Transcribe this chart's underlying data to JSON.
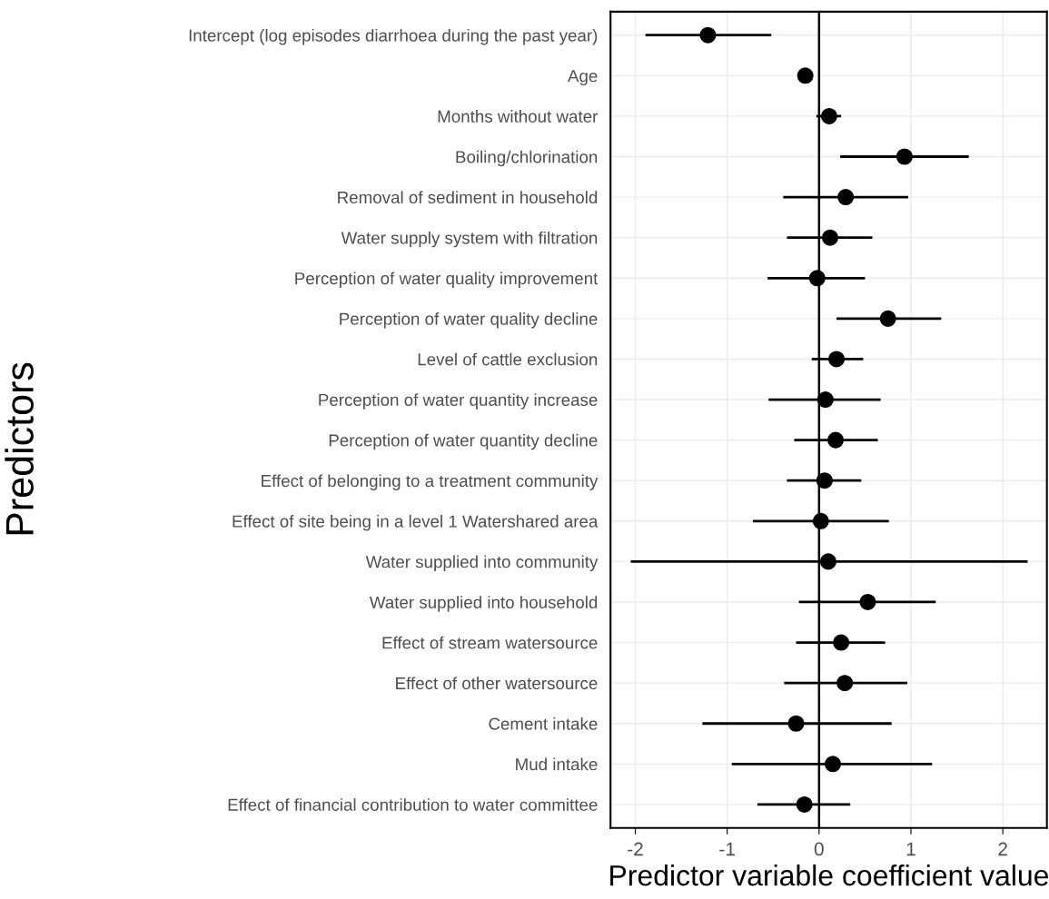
{
  "chart_data": {
    "type": "scatter",
    "orientation": "horizontal",
    "xlabel": "Predictor variable coefficient value",
    "ylabel": "Predictors",
    "categories": [
      "Intercept (log episodes diarrhoea during the past year)",
      "Age",
      "Months without water",
      "Boiling/chlorination",
      "Removal of sediment in household",
      "Water supply system with filtration",
      "Perception of water quality improvement",
      "Perception of water quality decline",
      "Level of cattle exclusion",
      "Perception of water quantity increase",
      "Perception of water quantity decline",
      "Effect of belonging to a treatment community",
      "Effect of site being in a level 1 Watershared area",
      "Water supplied into community",
      "Water supplied into household",
      "Effect of stream watersource",
      "Effect of other watersource",
      "Cement intake",
      "Mud intake",
      "Effect of financial contribution to water committee"
    ],
    "values": [
      -1.21,
      -0.15,
      0.11,
      0.93,
      0.29,
      0.12,
      -0.02,
      0.75,
      0.19,
      0.07,
      0.18,
      0.06,
      0.02,
      0.1,
      0.53,
      0.24,
      0.28,
      -0.25,
      0.15,
      -0.16
    ],
    "errors": [
      [
        -1.89,
        -0.52
      ],
      null,
      [
        -0.03,
        0.24
      ],
      [
        0.23,
        1.63
      ],
      [
        -0.39,
        0.97
      ],
      [
        -0.35,
        0.58
      ],
      [
        -0.56,
        0.5
      ],
      [
        0.19,
        1.33
      ],
      [
        -0.08,
        0.48
      ],
      [
        -0.55,
        0.67
      ],
      [
        -0.27,
        0.64
      ],
      [
        -0.35,
        0.46
      ],
      [
        -0.72,
        0.76
      ],
      [
        -2.05,
        2.27
      ],
      [
        -0.22,
        1.27
      ],
      [
        -0.25,
        0.72
      ],
      [
        -0.38,
        0.96
      ],
      [
        -1.27,
        0.79
      ],
      [
        -0.95,
        1.23
      ],
      [
        -0.67,
        0.34
      ]
    ],
    "color": "#000000",
    "marker": "circle",
    "xlim": [
      -2.27,
      2.48
    ],
    "xticks": [
      -2,
      -1,
      0,
      1,
      2
    ],
    "grid": true,
    "ref_lines": [
      {
        "axis": "x",
        "value": 0,
        "color": "#000000"
      }
    ]
  }
}
